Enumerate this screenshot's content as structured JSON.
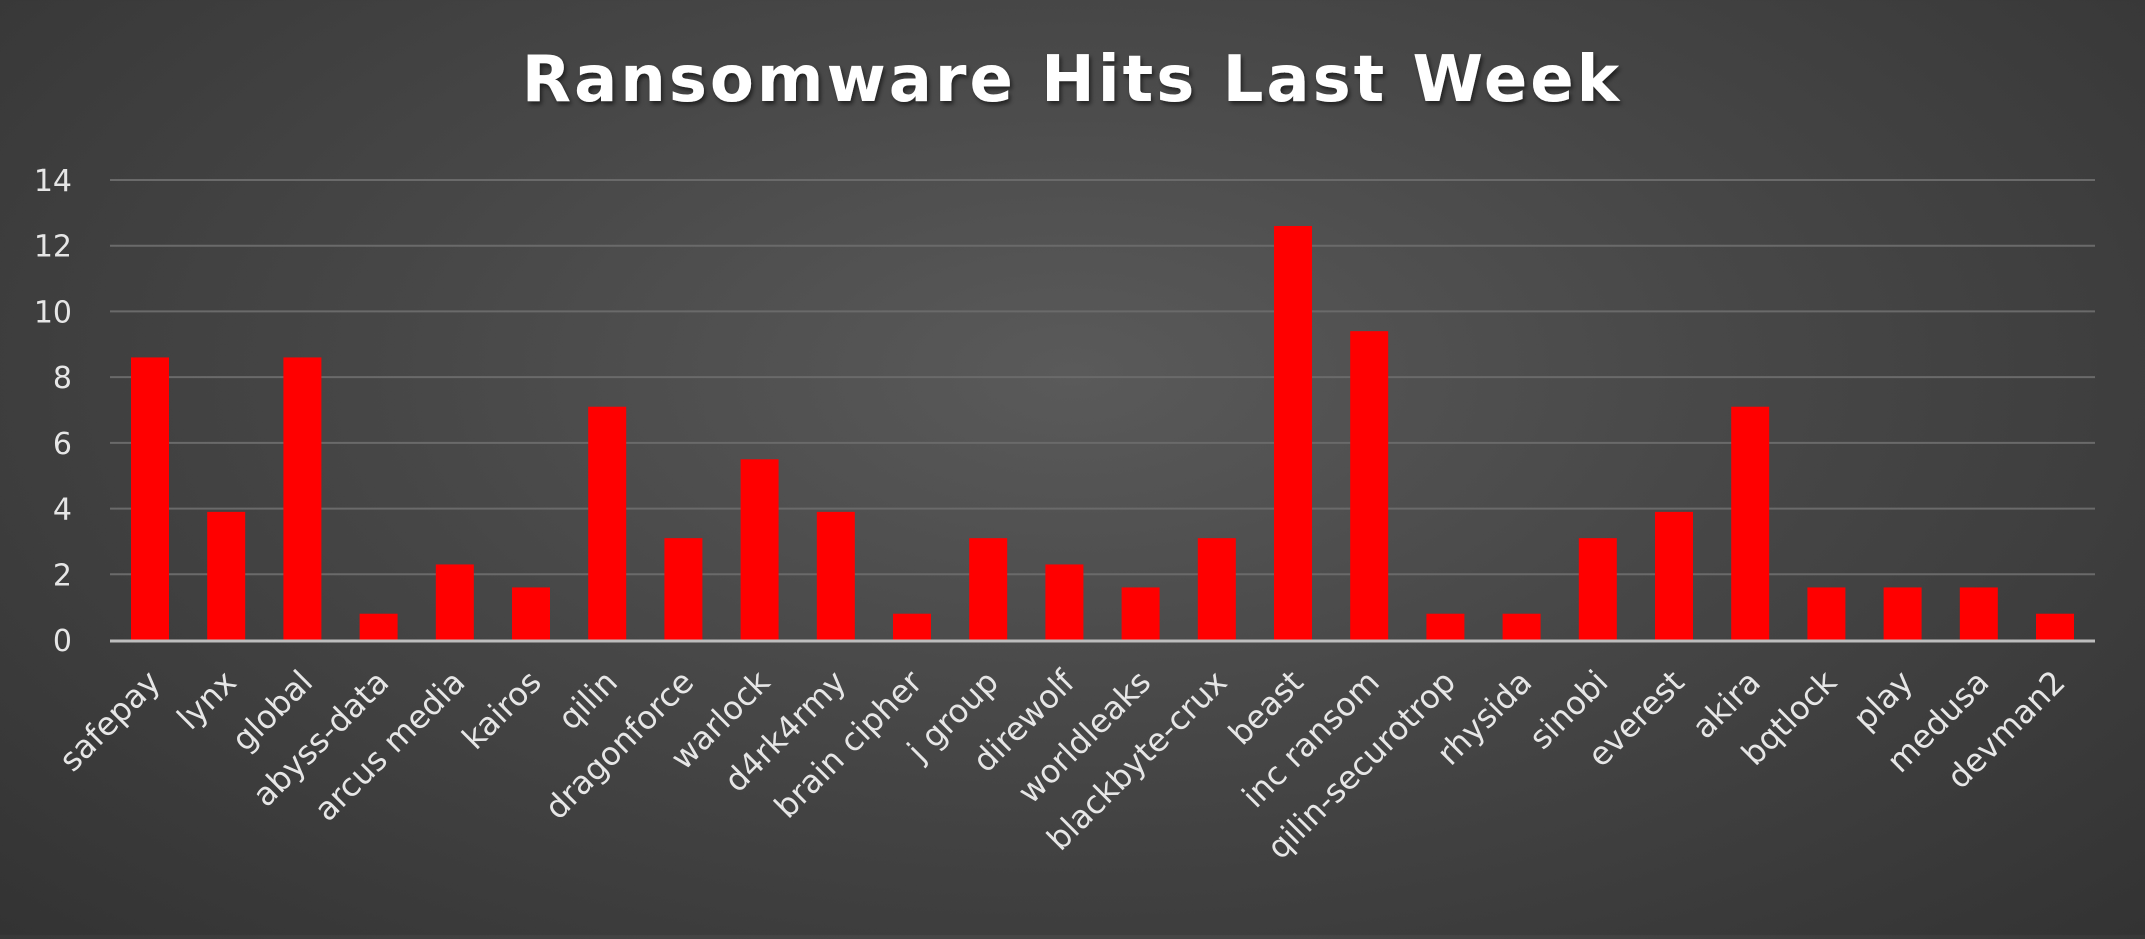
{
  "chart_data": {
    "type": "bar",
    "title": "Ransomware Hits Last Week",
    "xlabel": "",
    "ylabel": "",
    "ylim": [
      0,
      14
    ],
    "yticks": [
      0,
      2,
      4,
      6,
      8,
      10,
      12,
      14
    ],
    "grid": true,
    "legend": "none",
    "colors": {
      "bar": "#ff0000",
      "text": "#e6e6e6",
      "title": "#ffffff",
      "grid": "#6a6a6a",
      "axis": "#bdbdbd"
    },
    "categories": [
      "safepay",
      "lynx",
      "global",
      "abyss-data",
      "arcus media",
      "kairos",
      "qilin",
      "dragonforce",
      "warlock",
      "d4rk4rmy",
      "brain cipher",
      "j group",
      "direwolf",
      "worldleaks",
      "blackbyte-crux",
      "beast",
      "inc ransom",
      "qilin-securotrop",
      "rhysida",
      "sinobi",
      "everest",
      "akira",
      "bqtlock",
      "play",
      "medusa",
      "devman2"
    ],
    "values": [
      8.6,
      3.9,
      8.6,
      0.8,
      2.3,
      1.6,
      7.1,
      3.1,
      5.5,
      3.9,
      0.8,
      3.1,
      2.3,
      1.6,
      3.1,
      12.6,
      9.4,
      0.8,
      0.8,
      3.1,
      3.9,
      7.1,
      1.6,
      1.6,
      1.6,
      0.8
    ]
  }
}
